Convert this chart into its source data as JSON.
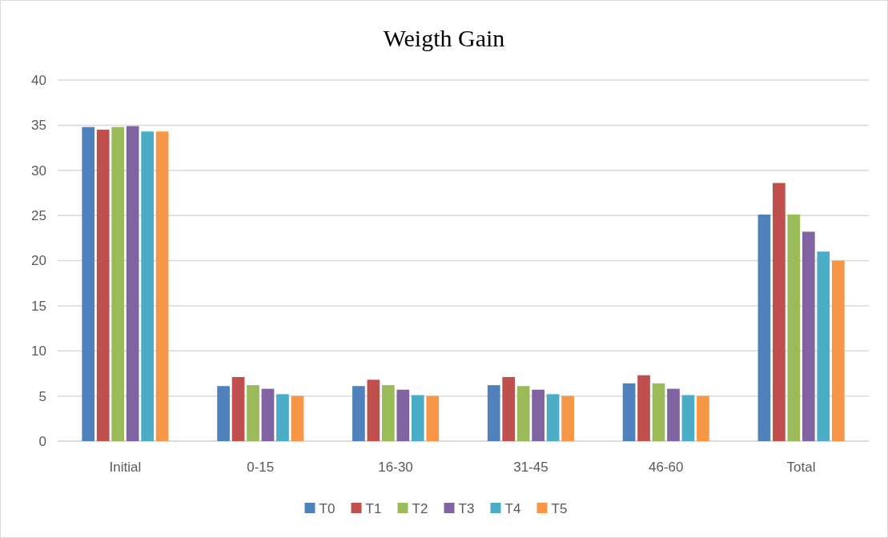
{
  "chart_data": {
    "type": "bar",
    "title": "Weigth  Gain",
    "categories": [
      "Initial",
      "0-15",
      "16-30",
      "31-45",
      "46-60",
      "Total"
    ],
    "series": [
      {
        "name": "T0",
        "color": "#4f81bd",
        "values": [
          34.8,
          6.1,
          6.1,
          6.2,
          6.4,
          25.1
        ]
      },
      {
        "name": "T1",
        "color": "#c0504d",
        "values": [
          34.5,
          7.1,
          6.8,
          7.1,
          7.3,
          28.6
        ]
      },
      {
        "name": "T2",
        "color": "#9bbb59",
        "values": [
          34.8,
          6.2,
          6.2,
          6.1,
          6.4,
          25.1
        ]
      },
      {
        "name": "T3",
        "color": "#8064a2",
        "values": [
          34.9,
          5.8,
          5.7,
          5.7,
          5.8,
          23.2
        ]
      },
      {
        "name": "T4",
        "color": "#4bacc6",
        "values": [
          34.3,
          5.2,
          5.1,
          5.2,
          5.1,
          21.0
        ]
      },
      {
        "name": "T5",
        "color": "#f79646",
        "values": [
          34.3,
          5.0,
          5.0,
          5.0,
          5.0,
          20.0
        ]
      }
    ],
    "ylim": [
      0,
      40
    ],
    "yticks": [
      0,
      5,
      10,
      15,
      20,
      25,
      30,
      35,
      40
    ],
    "grid": "y",
    "legend": "bottom"
  }
}
